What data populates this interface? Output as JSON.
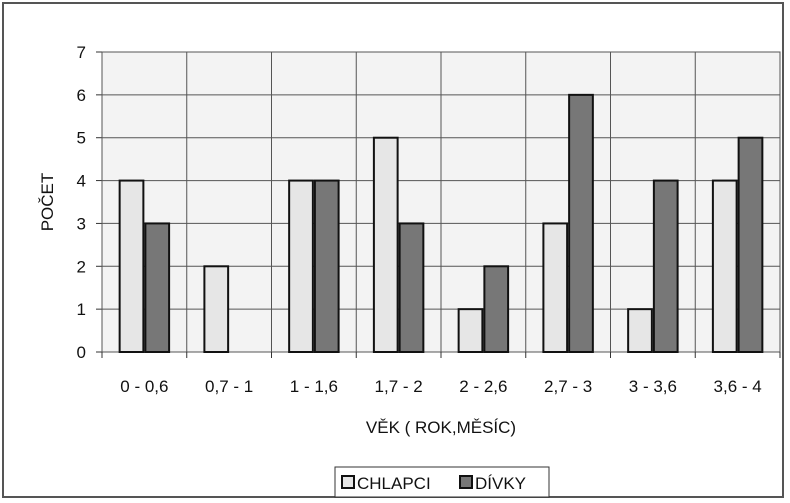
{
  "chart_data": {
    "type": "bar",
    "categories": [
      "0 - 0,6",
      "0,7 - 1",
      "1 - 1,6",
      "1,7 - 2",
      "2 - 2,6",
      "2,7 - 3",
      "3 - 3,6",
      "3,6 - 4"
    ],
    "series": [
      {
        "name": "CHLAPCI",
        "values": [
          4,
          2,
          4,
          5,
          1,
          3,
          1,
          4
        ],
        "color": "#e6e6e6"
      },
      {
        "name": "DÍVKY",
        "values": [
          3,
          0,
          4,
          3,
          2,
          6,
          4,
          5
        ],
        "color": "#777777"
      }
    ],
    "xlabel": "VĚK ( ROK,MĚSÍC)",
    "ylabel": "POČET",
    "ylim": [
      0,
      7
    ],
    "yticks": [
      "0",
      "1",
      "2",
      "3",
      "4",
      "5",
      "6",
      "7"
    ],
    "grid": true,
    "legend_position": "bottom"
  }
}
